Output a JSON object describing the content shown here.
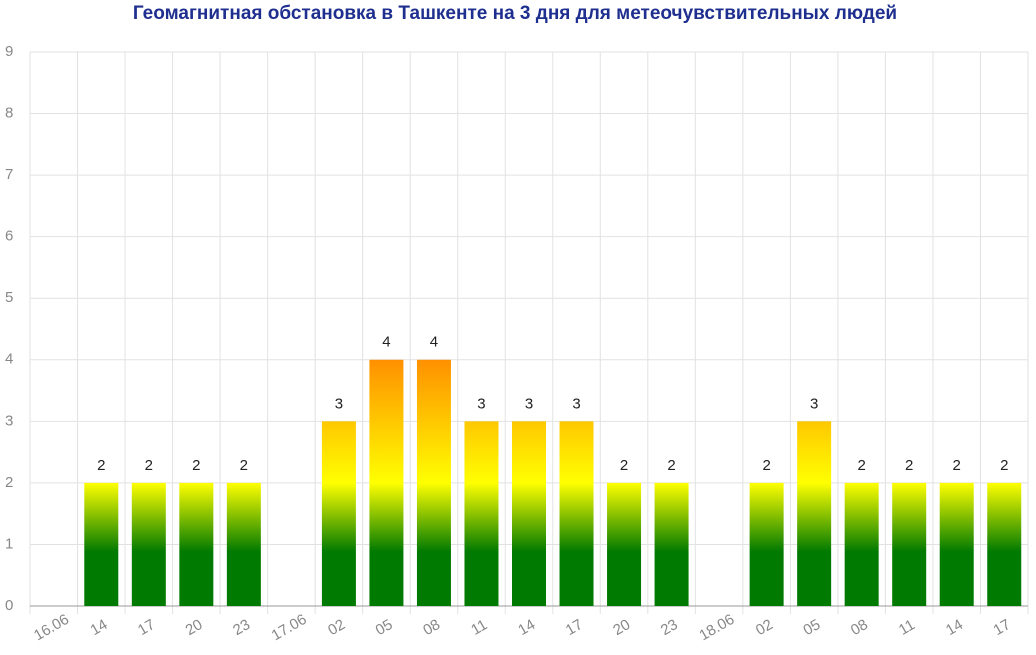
{
  "chart_data": {
    "type": "bar",
    "title": "Геомагнитная обстановка в Ташкенте на 3 дня для метеочувствительных людей",
    "categories": [
      "16.06",
      "14",
      "17",
      "20",
      "23",
      "17.06",
      "02",
      "05",
      "08",
      "11",
      "14",
      "17",
      "20",
      "23",
      "18.06",
      "02",
      "05",
      "08",
      "11",
      "14",
      "17"
    ],
    "values": [
      null,
      2,
      2,
      2,
      2,
      null,
      3,
      4,
      4,
      3,
      3,
      3,
      2,
      2,
      null,
      2,
      3,
      2,
      2,
      2,
      2
    ],
    "colors": [
      "#007a00",
      "#ffff00",
      "#ff9000"
    ],
    "ylim": [
      0,
      9
    ],
    "yticks": [
      0,
      1,
      2,
      3,
      4,
      5,
      6,
      7,
      8,
      9
    ],
    "grid": true
  }
}
